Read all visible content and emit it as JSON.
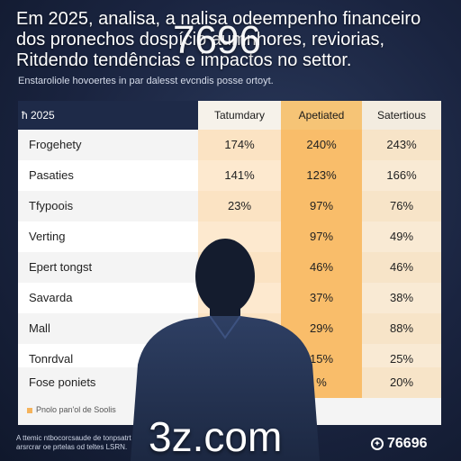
{
  "headline": {
    "line1": "Em 2025, analisa, a nalisa odeempenho financeiro",
    "line2": "dos pronechos dospício aumnhores, reviorias,",
    "line3": "Ritdendo tendências e impactos no settor."
  },
  "overlay_number": "7696",
  "subtitle": "Enstaroliole hovoertes in par dalesst evcndis posse ortoyt.",
  "table": {
    "corner_label": "ħ 2025",
    "columns": [
      "Tatumdary",
      "Apetiated",
      "Satertious"
    ],
    "rows": [
      {
        "label": "Frogehety",
        "values": [
          "174%",
          "240%",
          "243%"
        ]
      },
      {
        "label": "Pasaties",
        "values": [
          "141%",
          "123%",
          "166%"
        ]
      },
      {
        "label": "Tfypoois",
        "values": [
          "23%",
          "97%",
          "76%"
        ]
      },
      {
        "label": "Verting",
        "values": [
          "",
          "97%",
          "49%"
        ]
      },
      {
        "label": "Epert tongst",
        "values": [
          "",
          "46%",
          "46%"
        ]
      },
      {
        "label": "Savarda",
        "values": [
          "",
          "37%",
          "38%"
        ]
      },
      {
        "label": "Mall",
        "values": [
          "",
          "29%",
          "88%"
        ]
      },
      {
        "label": "Tonrdval",
        "values": [
          "",
          "15%",
          "25%"
        ]
      },
      {
        "label": "Fose poniets",
        "values": [
          "",
          "%",
          "20%"
        ]
      }
    ],
    "footnote": "Pnolo pan'ol de Soolis"
  },
  "watermark": "3z.com",
  "bottom_left_text": "A ttemic ntbocorcsaude de tonpsatrt arsrcrar oe prtelas od teltes LSRN.",
  "bottom_right": {
    "icon": "circle-logo-icon",
    "text": "76696"
  },
  "colors": {
    "highlight_column": "#f9bd6a",
    "background": "#1a2440"
  }
}
